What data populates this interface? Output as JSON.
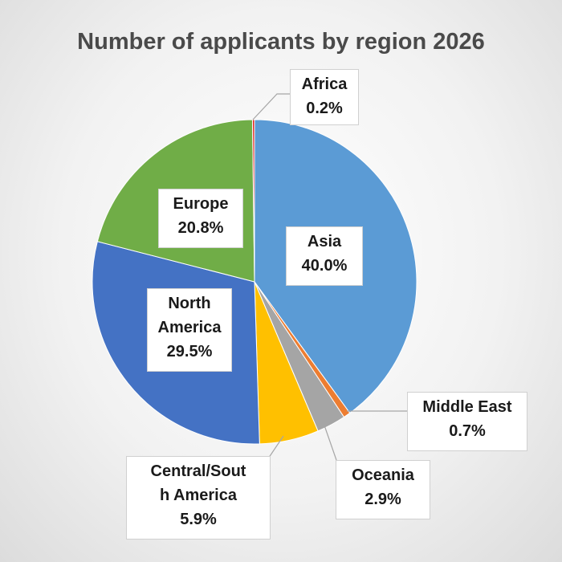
{
  "chart_data": {
    "type": "pie",
    "title": "Number of applicants by region 2026",
    "slices": [
      {
        "label_lines": [
          "Asia"
        ],
        "value": 40.0,
        "pct_text": "40.0%",
        "color": "#5B9BD5"
      },
      {
        "label_lines": [
          "Middle East"
        ],
        "value": 0.7,
        "pct_text": "0.7%",
        "color": "#ED7D31"
      },
      {
        "label_lines": [
          "Oceania"
        ],
        "value": 2.9,
        "pct_text": "2.9%",
        "color": "#A5A5A5"
      },
      {
        "label_lines": [
          "Central/Sout",
          "h America"
        ],
        "value": 5.9,
        "pct_text": "5.9%",
        "color": "#FFC000"
      },
      {
        "label_lines": [
          "North",
          "America"
        ],
        "value": 29.5,
        "pct_text": "29.5%",
        "color": "#4472C4"
      },
      {
        "label_lines": [
          "Europe"
        ],
        "value": 20.8,
        "pct_text": "20.8%",
        "color": "#70AD47"
      },
      {
        "label_lines": [
          "Africa"
        ],
        "value": 0.2,
        "pct_text": "0.2%",
        "color": "#E0201B"
      }
    ]
  }
}
